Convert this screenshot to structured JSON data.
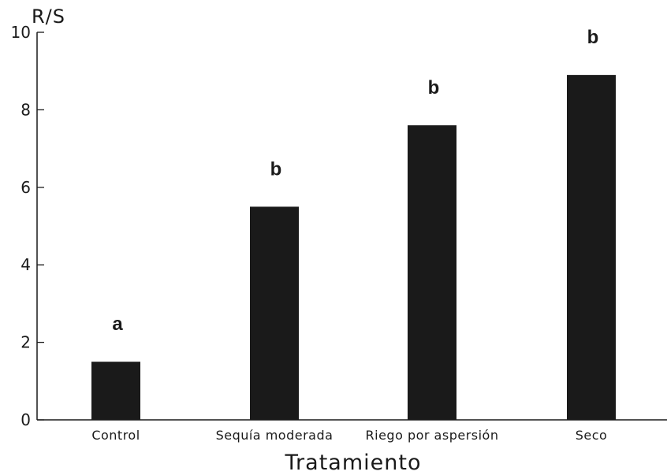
{
  "chart_data": {
    "type": "bar",
    "title": "",
    "ylabel": "R/S",
    "xlabel": "Tratamiento",
    "ylim": [
      0,
      10
    ],
    "yticks": [
      "0",
      "2",
      "4",
      "6",
      "8",
      "10"
    ],
    "categories": [
      "Control",
      "Sequía moderada",
      "Riego por aspersión",
      "Seco"
    ],
    "values": [
      1.5,
      5.5,
      7.6,
      8.9
    ],
    "significance": [
      "a",
      "b",
      "b",
      "b"
    ],
    "grid": false,
    "bar_color": "#1a1a1a"
  }
}
